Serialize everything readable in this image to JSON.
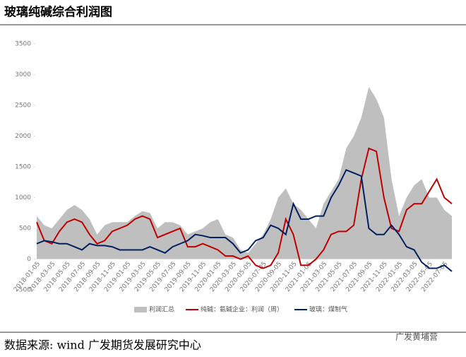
{
  "title": "玻璃纯碱综合利润图",
  "source": "数据来源: wind  广发期货发展研究中心",
  "watermark": "广发黄埔营",
  "chart_data": {
    "type": "line",
    "categories": [
      "2018-01-05",
      null,
      "2018-03-05",
      null,
      "2018-05-05",
      null,
      "2018-07-05",
      null,
      "2018-09-05",
      null,
      "2018-11-05",
      null,
      "2019-01-05",
      null,
      "2019-03-05",
      null,
      "2019-05-05",
      null,
      "2019-07-05",
      null,
      "2019-09-05",
      null,
      "2019-11-05",
      null,
      "2020-01-05",
      null,
      "2020-03-05",
      null,
      "2020-05-05",
      null,
      "2020-07-05",
      null,
      "2020-09-05",
      null,
      "2020-11-05",
      null,
      "2021-01-05",
      null,
      "2021-03-05",
      null,
      "2021-05-05",
      null,
      "2021-07-05",
      null,
      "2021-09-05",
      null,
      "2021-11-05",
      null,
      "2022-01-05",
      null,
      "2022-03-05",
      null,
      "2022-05-05",
      null,
      "2022-07-05",
      null
    ],
    "series": [
      {
        "name": "利润汇总",
        "type": "area",
        "color": "#bfbfbf",
        "values": [
          700,
          550,
          500,
          650,
          800,
          880,
          800,
          650,
          400,
          550,
          600,
          600,
          600,
          700,
          780,
          750,
          500,
          600,
          600,
          550,
          400,
          450,
          500,
          600,
          650,
          400,
          350,
          150,
          100,
          250,
          400,
          650,
          1000,
          1150,
          900,
          800,
          650,
          500,
          900,
          1100,
          1300,
          1800,
          2000,
          2300,
          2800,
          2600,
          2300,
          1300,
          700,
          1000,
          1200,
          1300,
          1000,
          1000,
          800,
          700
        ]
      },
      {
        "name": "纯碱：氨碱企业：利润（周）",
        "type": "line",
        "color": "#c00000",
        "values": [
          600,
          300,
          250,
          450,
          600,
          650,
          600,
          400,
          250,
          300,
          450,
          500,
          550,
          650,
          700,
          650,
          350,
          400,
          450,
          500,
          200,
          200,
          250,
          200,
          150,
          50,
          50,
          0,
          50,
          -100,
          -150,
          -100,
          100,
          650,
          400,
          -100,
          -100,
          0,
          150,
          400,
          450,
          450,
          550,
          1300,
          1800,
          1750,
          1000,
          500,
          450,
          800,
          900,
          900,
          1100,
          1300,
          1000,
          900
        ]
      },
      {
        "name": "玻璃：煤制气",
        "type": "line",
        "color": "#002060",
        "values": [
          250,
          300,
          280,
          250,
          250,
          200,
          150,
          250,
          220,
          220,
          200,
          150,
          150,
          150,
          150,
          200,
          150,
          100,
          200,
          250,
          300,
          400,
          380,
          350,
          350,
          350,
          250,
          100,
          150,
          300,
          350,
          550,
          500,
          400,
          900,
          650,
          650,
          700,
          700,
          1000,
          1200,
          1450,
          1400,
          1350,
          500,
          400,
          400,
          550,
          400,
          200,
          150,
          -50,
          -150,
          -150,
          -100,
          -200
        ]
      }
    ],
    "ylim": [
      -500,
      3500
    ],
    "yticks": [
      -500,
      0,
      500,
      1000,
      1500,
      2000,
      2500,
      3000,
      3500
    ]
  }
}
